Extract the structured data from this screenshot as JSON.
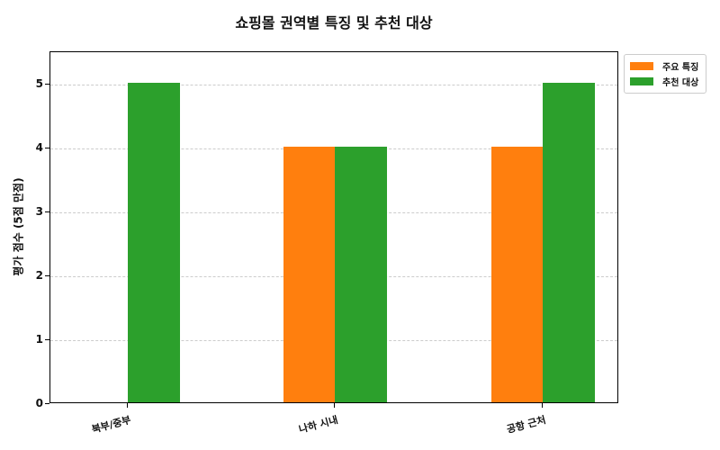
{
  "chart_data": {
    "type": "bar",
    "title": "쇼핑몰 권역별 특징 및 추천 대상",
    "xlabel": "",
    "ylabel": "평가 점수 (5점 만점)",
    "categories": [
      "북부/중부",
      "나하 시내",
      "공항 근처"
    ],
    "series": [
      {
        "name": "주요 특징",
        "color": "#ff7f0e",
        "values": [
          0,
          4,
          4
        ]
      },
      {
        "name": "추천 대상",
        "color": "#2ca02c",
        "values": [
          5,
          4,
          5
        ]
      }
    ],
    "ylim": [
      0,
      5.5
    ],
    "yticks": [
      0,
      1,
      2,
      3,
      4,
      5
    ],
    "grid": "y-dashed",
    "legend_position": "upper right outside"
  }
}
